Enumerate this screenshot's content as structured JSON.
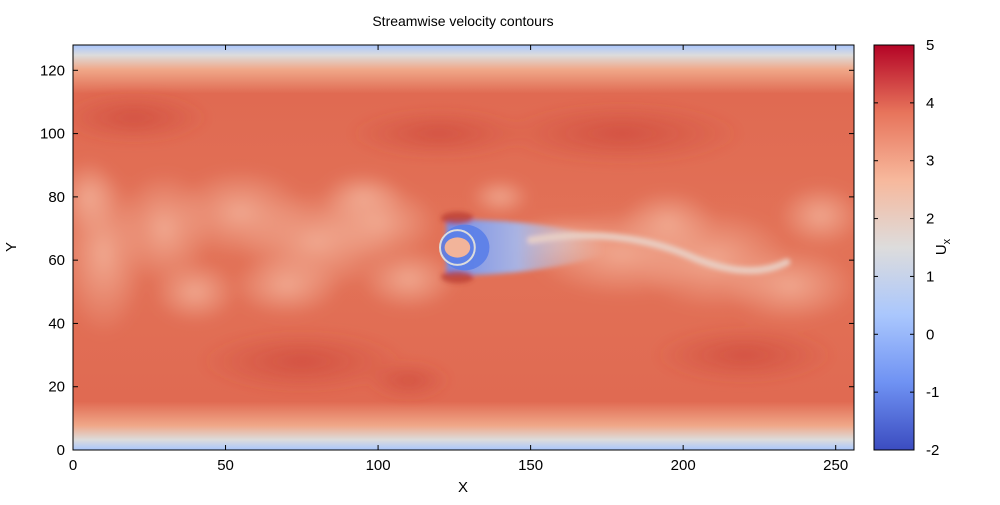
{
  "chart_data": {
    "type": "heatmap",
    "title": "Streamwise velocity contours",
    "xlabel": "X",
    "ylabel": "Y",
    "xlim": [
      0,
      256
    ],
    "ylim": [
      0,
      128
    ],
    "xticks": [
      "0",
      "50",
      "100",
      "150",
      "200",
      "250"
    ],
    "yticks": [
      "0",
      "20",
      "40",
      "60",
      "80",
      "100",
      "120"
    ],
    "x_tick_values": [
      0,
      50,
      100,
      150,
      200,
      250
    ],
    "y_tick_values": [
      0,
      20,
      40,
      60,
      80,
      100,
      120
    ],
    "colorbar": {
      "label_main": "U",
      "label_sub": "x",
      "range": [
        -2,
        5
      ],
      "ticks": [
        "5",
        "4",
        "3",
        "2",
        "1",
        "0",
        "-1",
        "-2"
      ],
      "tick_values": [
        5,
        4,
        3,
        2,
        1,
        0,
        -1,
        -2
      ],
      "colormap": "coolwarm",
      "colors": [
        "#3b4cc0",
        "#6f92f3",
        "#aac7fd",
        "#dddcdc",
        "#f7b89c",
        "#e7745b",
        "#b40426"
      ]
    },
    "features": {
      "obstacle_center": [
        126,
        64
      ],
      "obstacle_radius": 6,
      "bulk_velocity": 4.3,
      "wall_velocity": 0.5,
      "wake_velocity_min": -1.0
    },
    "grid": false
  }
}
